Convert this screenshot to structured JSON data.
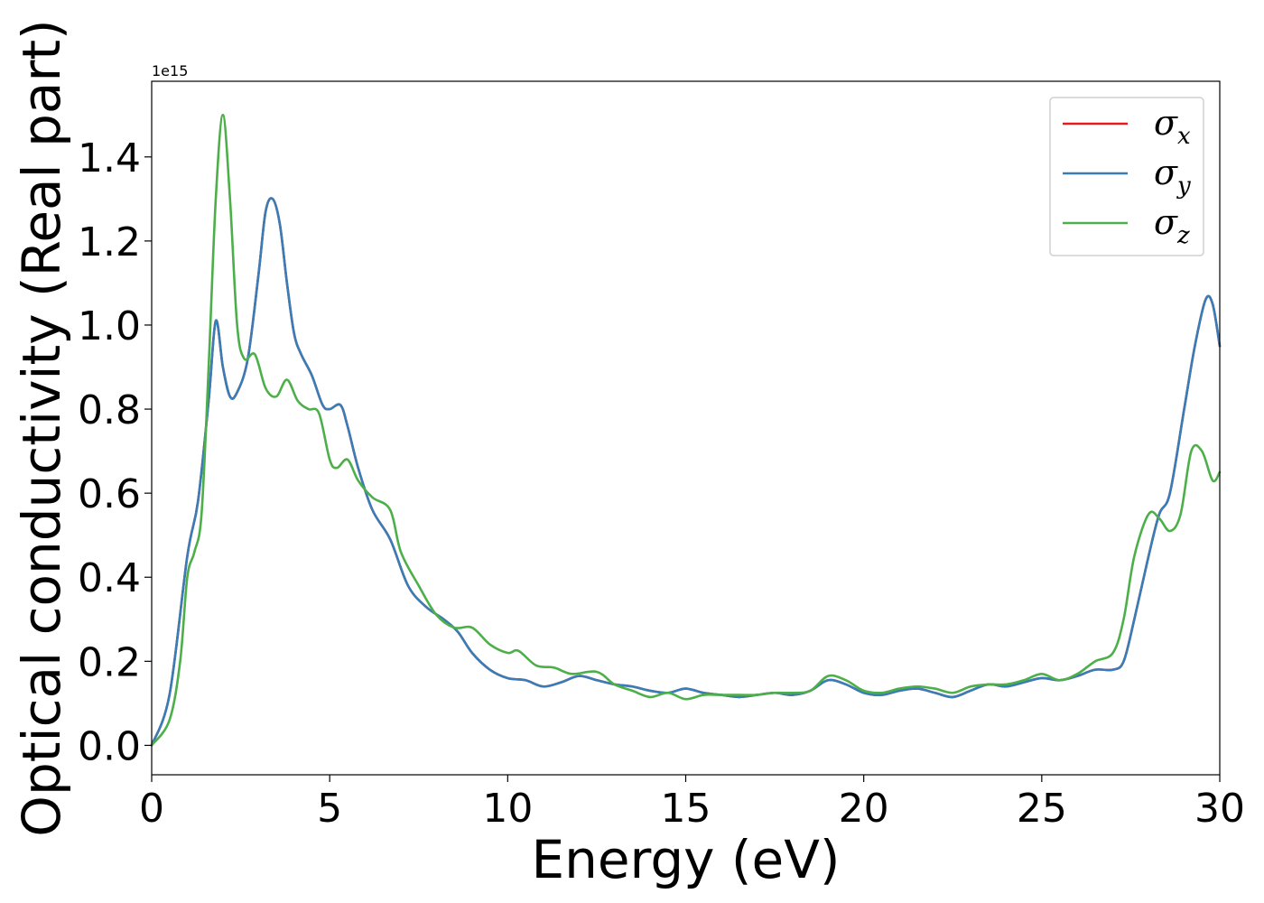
{
  "chart_data": {
    "type": "line",
    "title": "",
    "xlabel": "Energy (eV)",
    "ylabel": "Optical conductivity (Real part)",
    "y_offset_label": "1e15",
    "xlim": [
      0,
      30
    ],
    "ylim": [
      -0.07,
      1.58
    ],
    "x_ticks": [
      0,
      5,
      10,
      15,
      20,
      25,
      30
    ],
    "x_tick_labels": [
      "0",
      "5",
      "10",
      "15",
      "20",
      "25",
      "30"
    ],
    "y_ticks": [
      0.0,
      0.2,
      0.4,
      0.6,
      0.8,
      1.0,
      1.2,
      1.4
    ],
    "y_tick_labels": [
      "0.0",
      "0.2",
      "0.4",
      "0.6",
      "0.8",
      "1.0",
      "1.2",
      "1.4"
    ],
    "grid": false,
    "legend_position": "top-right",
    "series": [
      {
        "name": "σx",
        "symbol": "σ",
        "subscript": "x",
        "color": "#e41a1c",
        "x": [
          0,
          0.5,
          1.0,
          1.3,
          1.6,
          1.8,
          2.0,
          2.2,
          2.4,
          2.7,
          3.0,
          3.2,
          3.4,
          3.6,
          3.8,
          4.0,
          4.2,
          4.5,
          4.8,
          5.0,
          5.3,
          5.5,
          5.8,
          6.2,
          6.7,
          7.2,
          7.7,
          8.2,
          8.6,
          9.0,
          9.5,
          10.0,
          10.5,
          11.0,
          11.5,
          12.0,
          12.5,
          13.0,
          13.5,
          14.0,
          14.5,
          15.0,
          15.5,
          16.0,
          16.5,
          17.0,
          17.5,
          18.0,
          18.5,
          19.0,
          19.5,
          20.0,
          20.5,
          21.0,
          21.5,
          22.0,
          22.5,
          23.0,
          23.5,
          24.0,
          24.5,
          25.0,
          25.5,
          26.0,
          26.5,
          27.0,
          27.3,
          27.6,
          28.0,
          28.3,
          28.6,
          29.0,
          29.3,
          29.6,
          29.8,
          30.0
        ],
        "y": [
          0.0,
          0.12,
          0.45,
          0.58,
          0.82,
          1.01,
          0.9,
          0.83,
          0.84,
          0.92,
          1.12,
          1.27,
          1.3,
          1.24,
          1.1,
          0.98,
          0.93,
          0.88,
          0.81,
          0.8,
          0.81,
          0.76,
          0.66,
          0.56,
          0.49,
          0.38,
          0.33,
          0.3,
          0.27,
          0.22,
          0.18,
          0.16,
          0.155,
          0.14,
          0.15,
          0.165,
          0.155,
          0.145,
          0.14,
          0.13,
          0.125,
          0.135,
          0.125,
          0.12,
          0.115,
          0.12,
          0.125,
          0.12,
          0.13,
          0.155,
          0.145,
          0.125,
          0.12,
          0.13,
          0.135,
          0.125,
          0.115,
          0.13,
          0.145,
          0.14,
          0.15,
          0.16,
          0.155,
          0.165,
          0.18,
          0.18,
          0.2,
          0.3,
          0.45,
          0.55,
          0.6,
          0.8,
          0.95,
          1.06,
          1.05,
          0.95
        ]
      },
      {
        "name": "σy",
        "symbol": "σ",
        "subscript": "y",
        "color": "#377eb8",
        "x": [
          0,
          0.5,
          1.0,
          1.3,
          1.6,
          1.8,
          2.0,
          2.2,
          2.4,
          2.7,
          3.0,
          3.2,
          3.4,
          3.6,
          3.8,
          4.0,
          4.2,
          4.5,
          4.8,
          5.0,
          5.3,
          5.5,
          5.8,
          6.2,
          6.7,
          7.2,
          7.7,
          8.2,
          8.6,
          9.0,
          9.5,
          10.0,
          10.5,
          11.0,
          11.5,
          12.0,
          12.5,
          13.0,
          13.5,
          14.0,
          14.5,
          15.0,
          15.5,
          16.0,
          16.5,
          17.0,
          17.5,
          18.0,
          18.5,
          19.0,
          19.5,
          20.0,
          20.5,
          21.0,
          21.5,
          22.0,
          22.5,
          23.0,
          23.5,
          24.0,
          24.5,
          25.0,
          25.5,
          26.0,
          26.5,
          27.0,
          27.3,
          27.6,
          28.0,
          28.3,
          28.6,
          29.0,
          29.3,
          29.6,
          29.8,
          30.0
        ],
        "y": [
          0.0,
          0.12,
          0.45,
          0.58,
          0.82,
          1.01,
          0.9,
          0.83,
          0.84,
          0.92,
          1.12,
          1.27,
          1.3,
          1.24,
          1.1,
          0.98,
          0.93,
          0.88,
          0.81,
          0.8,
          0.81,
          0.76,
          0.66,
          0.56,
          0.49,
          0.38,
          0.33,
          0.3,
          0.27,
          0.22,
          0.18,
          0.16,
          0.155,
          0.14,
          0.15,
          0.165,
          0.155,
          0.145,
          0.14,
          0.13,
          0.125,
          0.135,
          0.125,
          0.12,
          0.115,
          0.12,
          0.125,
          0.12,
          0.13,
          0.155,
          0.145,
          0.125,
          0.12,
          0.13,
          0.135,
          0.125,
          0.115,
          0.13,
          0.145,
          0.14,
          0.15,
          0.16,
          0.155,
          0.165,
          0.18,
          0.18,
          0.2,
          0.3,
          0.45,
          0.55,
          0.6,
          0.8,
          0.95,
          1.06,
          1.05,
          0.95
        ]
      },
      {
        "name": "σz",
        "symbol": "σ",
        "subscript": "z",
        "color": "#4daf4a",
        "x": [
          0,
          0.5,
          0.8,
          1.0,
          1.2,
          1.4,
          1.6,
          1.8,
          2.0,
          2.2,
          2.4,
          2.6,
          2.9,
          3.2,
          3.5,
          3.8,
          4.1,
          4.4,
          4.7,
          5.0,
          5.2,
          5.5,
          5.8,
          6.2,
          6.7,
          7.0,
          7.5,
          8.0,
          8.5,
          9.0,
          9.5,
          10.0,
          10.3,
          10.8,
          11.3,
          11.8,
          12.5,
          13.0,
          13.5,
          14.0,
          14.5,
          15.0,
          15.5,
          16.0,
          16.5,
          17.0,
          17.5,
          18.0,
          18.5,
          19.0,
          19.5,
          20.0,
          20.5,
          21.0,
          21.5,
          22.0,
          22.5,
          23.0,
          23.5,
          24.0,
          24.5,
          25.0,
          25.5,
          26.0,
          26.5,
          27.0,
          27.3,
          27.6,
          28.0,
          28.3,
          28.6,
          28.9,
          29.2,
          29.5,
          29.8,
          30.0
        ],
        "y": [
          0.0,
          0.06,
          0.2,
          0.4,
          0.46,
          0.55,
          0.9,
          1.3,
          1.5,
          1.3,
          1.0,
          0.92,
          0.93,
          0.85,
          0.83,
          0.87,
          0.82,
          0.8,
          0.79,
          0.68,
          0.66,
          0.68,
          0.63,
          0.59,
          0.56,
          0.46,
          0.38,
          0.31,
          0.28,
          0.28,
          0.24,
          0.22,
          0.225,
          0.19,
          0.185,
          0.17,
          0.175,
          0.145,
          0.13,
          0.115,
          0.125,
          0.11,
          0.12,
          0.12,
          0.12,
          0.12,
          0.125,
          0.125,
          0.13,
          0.165,
          0.155,
          0.13,
          0.125,
          0.135,
          0.14,
          0.135,
          0.125,
          0.14,
          0.145,
          0.145,
          0.155,
          0.17,
          0.155,
          0.17,
          0.2,
          0.22,
          0.3,
          0.45,
          0.55,
          0.54,
          0.51,
          0.55,
          0.7,
          0.7,
          0.63,
          0.65
        ]
      }
    ]
  }
}
